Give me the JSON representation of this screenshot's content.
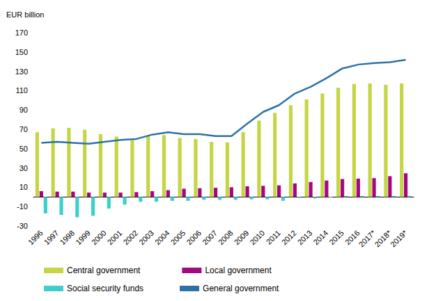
{
  "chart_data": {
    "type": "bar",
    "y_label": "EUR billion",
    "categories": [
      "1996",
      "1997",
      "1998",
      "1999",
      "2000",
      "2001",
      "2002",
      "2003",
      "2004",
      "2005",
      "2006",
      "2007",
      "2008",
      "2009",
      "2010",
      "2011",
      "2012",
      "2013",
      "2014",
      "2015",
      "2016",
      "2017*",
      "2018*",
      "2019*"
    ],
    "series": [
      {
        "name": "Central government",
        "type": "bar",
        "color": "#c5d545",
        "values": [
          67,
          71,
          71.5,
          69.5,
          65,
          62.5,
          58.5,
          63,
          64,
          61,
          60,
          57,
          56.5,
          67,
          79,
          87,
          95,
          101,
          107,
          113,
          117,
          117.5,
          116,
          117.5
        ]
      },
      {
        "name": "Local government",
        "type": "bar",
        "color": "#a5077f",
        "values": [
          6,
          5.5,
          5.5,
          4.5,
          4.5,
          4.5,
          5,
          6,
          7,
          8.5,
          9,
          9.5,
          10,
          11,
          11.5,
          12,
          14,
          15.5,
          17,
          18.5,
          19,
          19.5,
          21.5,
          24.5
        ]
      },
      {
        "name": "Social security funds",
        "type": "bar",
        "color": "#3ecfc9",
        "values": [
          -17,
          -18.5,
          -21,
          -19.5,
          -12,
          -8,
          -5,
          -5,
          -4,
          -4,
          -3,
          -3,
          -3,
          -2.5,
          -2.5,
          -4,
          -1,
          -1.5,
          -0.5,
          1,
          1,
          1,
          1,
          1
        ]
      },
      {
        "name": "General government",
        "type": "line",
        "color": "#2b72a9",
        "values": [
          56,
          57,
          56,
          55,
          57,
          59,
          60,
          64.5,
          67,
          65,
          65,
          63,
          63,
          76,
          88,
          95,
          107,
          114,
          123,
          133,
          137,
          138.5,
          139.5,
          142
        ]
      }
    ],
    "ylim": [
      -30,
      170
    ],
    "yticks": [
      -30,
      -10,
      10,
      30,
      50,
      70,
      90,
      110,
      130,
      150,
      170
    ],
    "grid": false,
    "legend": "bottom"
  }
}
